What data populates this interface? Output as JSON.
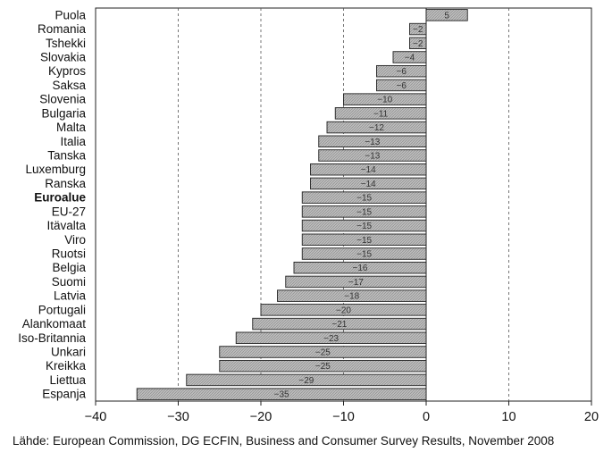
{
  "chart_data": {
    "type": "bar",
    "orientation": "horizontal",
    "categories": [
      "Puola",
      "Romania",
      "Tshekki",
      "Slovakia",
      "Kypros",
      "Saksa",
      "Slovenia",
      "Bulgaria",
      "Malta",
      "Italia",
      "Tanska",
      "Luxemburg",
      "Ranska",
      "Euroalue",
      "EU-27",
      "Itävalta",
      "Viro",
      "Ruotsi",
      "Belgia",
      "Suomi",
      "Latvia",
      "Portugali",
      "Alankomaat",
      "Iso-Britannia",
      "Unkari",
      "Kreikka",
      "Liettua",
      "Espanja"
    ],
    "highlighted_category": "Euroalue",
    "values": [
      5,
      -2,
      -2,
      -4,
      -6,
      -6,
      -10,
      -11,
      -12,
      -13,
      -13,
      -14,
      -14,
      -15,
      -15,
      -15,
      -15,
      -15,
      -16,
      -17,
      -18,
      -20,
      -21,
      -23,
      -25,
      -25,
      -29,
      -35
    ],
    "value_labels": [
      "5",
      "−2",
      "−2",
      "−4",
      "−6",
      "−6",
      "−10",
      "−11",
      "−12",
      "−13",
      "−13",
      "−14",
      "−14",
      "−15",
      "−15",
      "−15",
      "−15",
      "−15",
      "−16",
      "−17",
      "−18",
      "−20",
      "−21",
      "−23",
      "−25",
      "−25",
      "−29",
      "−35"
    ],
    "xlim": [
      -40,
      20
    ],
    "x_ticks": [
      -40,
      -30,
      -20,
      -10,
      0,
      10,
      20
    ],
    "x_tick_labels": [
      "−40",
      "−30",
      "−20",
      "−10",
      "0",
      "10",
      "20"
    ],
    "grid": "vertical dashed",
    "bar_fill": "#bdbdbd",
    "bar_stroke": "#222222"
  },
  "source": "Lähde: European Commission, DG ECFIN, Business and Consumer Survey Results, November 2008"
}
